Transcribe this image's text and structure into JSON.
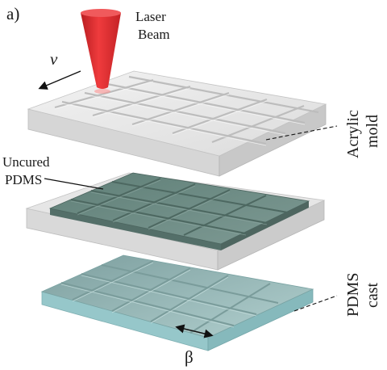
{
  "panel_label": "a)",
  "laser": {
    "line1": "Laser",
    "line2": "Beam",
    "color": "#e0282a"
  },
  "velocity_symbol": "v",
  "acrylic_mold": {
    "line1": "Acrylic",
    "line2": "mold"
  },
  "uncured_pdms": {
    "line1": "Uncured",
    "line2": "PDMS"
  },
  "pdms_cast": {
    "line1": "PDMS",
    "line2": "cast"
  },
  "beta_symbol": "β",
  "colors": {
    "acrylic_top": "#e9e9e9",
    "acrylic_side": "#d2d2d2",
    "uncured_top": "#6f8e86",
    "cast_top": "#9fbfbe",
    "cast_side": "#8fc3c6"
  }
}
